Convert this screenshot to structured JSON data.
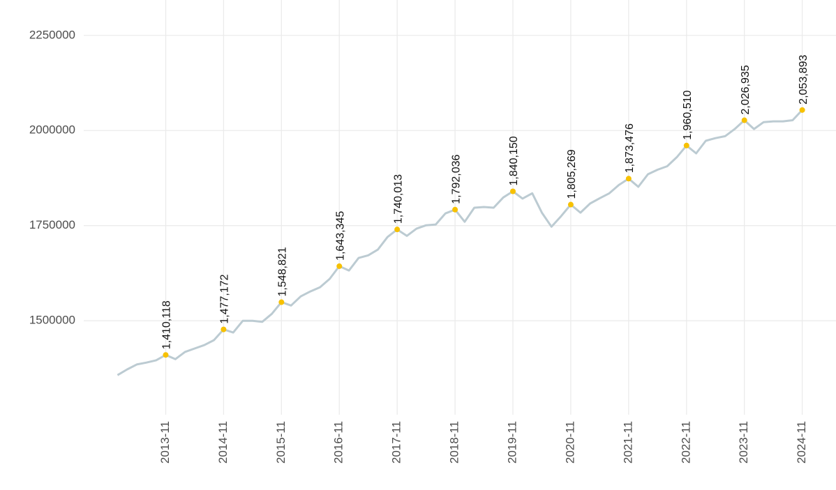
{
  "chart_data": {
    "type": "line",
    "series": [
      {
        "color": "#bccbd2",
        "x": [
          "2013-01",
          "2013-03",
          "2013-05",
          "2013-07",
          "2013-09",
          "2013-11",
          "2014-01",
          "2014-03",
          "2014-05",
          "2014-07",
          "2014-09",
          "2014-11",
          "2015-01",
          "2015-03",
          "2015-05",
          "2015-07",
          "2015-09",
          "2015-11",
          "2016-01",
          "2016-03",
          "2016-05",
          "2016-07",
          "2016-09",
          "2016-11",
          "2017-01",
          "2017-03",
          "2017-05",
          "2017-07",
          "2017-09",
          "2017-11",
          "2018-01",
          "2018-03",
          "2018-05",
          "2018-07",
          "2018-09",
          "2018-11",
          "2019-01",
          "2019-03",
          "2019-05",
          "2019-07",
          "2019-09",
          "2019-11",
          "2020-01",
          "2020-03",
          "2020-05",
          "2020-07",
          "2020-09",
          "2020-11",
          "2021-01",
          "2021-03",
          "2021-05",
          "2021-07",
          "2021-09",
          "2021-11",
          "2022-01",
          "2022-03",
          "2022-05",
          "2022-07",
          "2022-09",
          "2022-11",
          "2023-01",
          "2023-03",
          "2023-05",
          "2023-07",
          "2023-09",
          "2023-11",
          "2024-01",
          "2024-03",
          "2024-05",
          "2024-07",
          "2024-09",
          "2024-11"
        ],
        "values": [
          1357000,
          1372000,
          1385000,
          1390000,
          1396000,
          1410118,
          1399000,
          1418000,
          1427000,
          1436000,
          1449000,
          1477172,
          1469000,
          1500000,
          1500000,
          1497000,
          1518000,
          1548821,
          1540000,
          1564000,
          1577000,
          1588000,
          1610000,
          1643345,
          1632000,
          1665000,
          1672000,
          1687000,
          1720000,
          1740013,
          1723000,
          1742000,
          1751000,
          1753000,
          1782000,
          1792036,
          1760000,
          1797000,
          1799000,
          1797000,
          1824000,
          1840150,
          1821000,
          1835000,
          1784000,
          1747000,
          1775000,
          1805269,
          1784000,
          1808000,
          1822000,
          1835000,
          1857000,
          1873476,
          1852000,
          1885000,
          1897000,
          1906000,
          1930000,
          1960510,
          1940000,
          1973000,
          1980000,
          1985000,
          2004000,
          2026935,
          2004000,
          2022000,
          2024000,
          2024000,
          2027000,
          2053893
        ]
      },
      {
        "color": "#f7c100",
        "marker": "point",
        "x": [
          "2013-11",
          "2014-11",
          "2015-11",
          "2016-11",
          "2017-11",
          "2018-11",
          "2019-11",
          "2020-11",
          "2021-11",
          "2022-11",
          "2023-11",
          "2024-11"
        ],
        "values": [
          1410118,
          1477172,
          1548821,
          1643345,
          1740013,
          1792036,
          1840150,
          1805269,
          1873476,
          1960510,
          2026935,
          2053893
        ],
        "value_labels": [
          "1,410,118",
          "1,477,172",
          "1,548,821",
          "1,643,345",
          "1,740,013",
          "1,792,036",
          "1,840,150",
          "1,805,269",
          "1,873,476",
          "1,960,510",
          "2,026,935",
          "2,053,893"
        ]
      }
    ],
    "xlim": [
      "2012-06",
      "2025-06"
    ],
    "xticks": [
      "2013-11",
      "2014-11",
      "2015-11",
      "2016-11",
      "2017-11",
      "2018-11",
      "2019-11",
      "2020-11",
      "2021-11",
      "2022-11",
      "2023-11",
      "2024-11"
    ],
    "ylim": [
      1253000,
      2343000
    ],
    "yticks": [
      1500000,
      1750000,
      2000000,
      2250000
    ],
    "grid": true
  }
}
